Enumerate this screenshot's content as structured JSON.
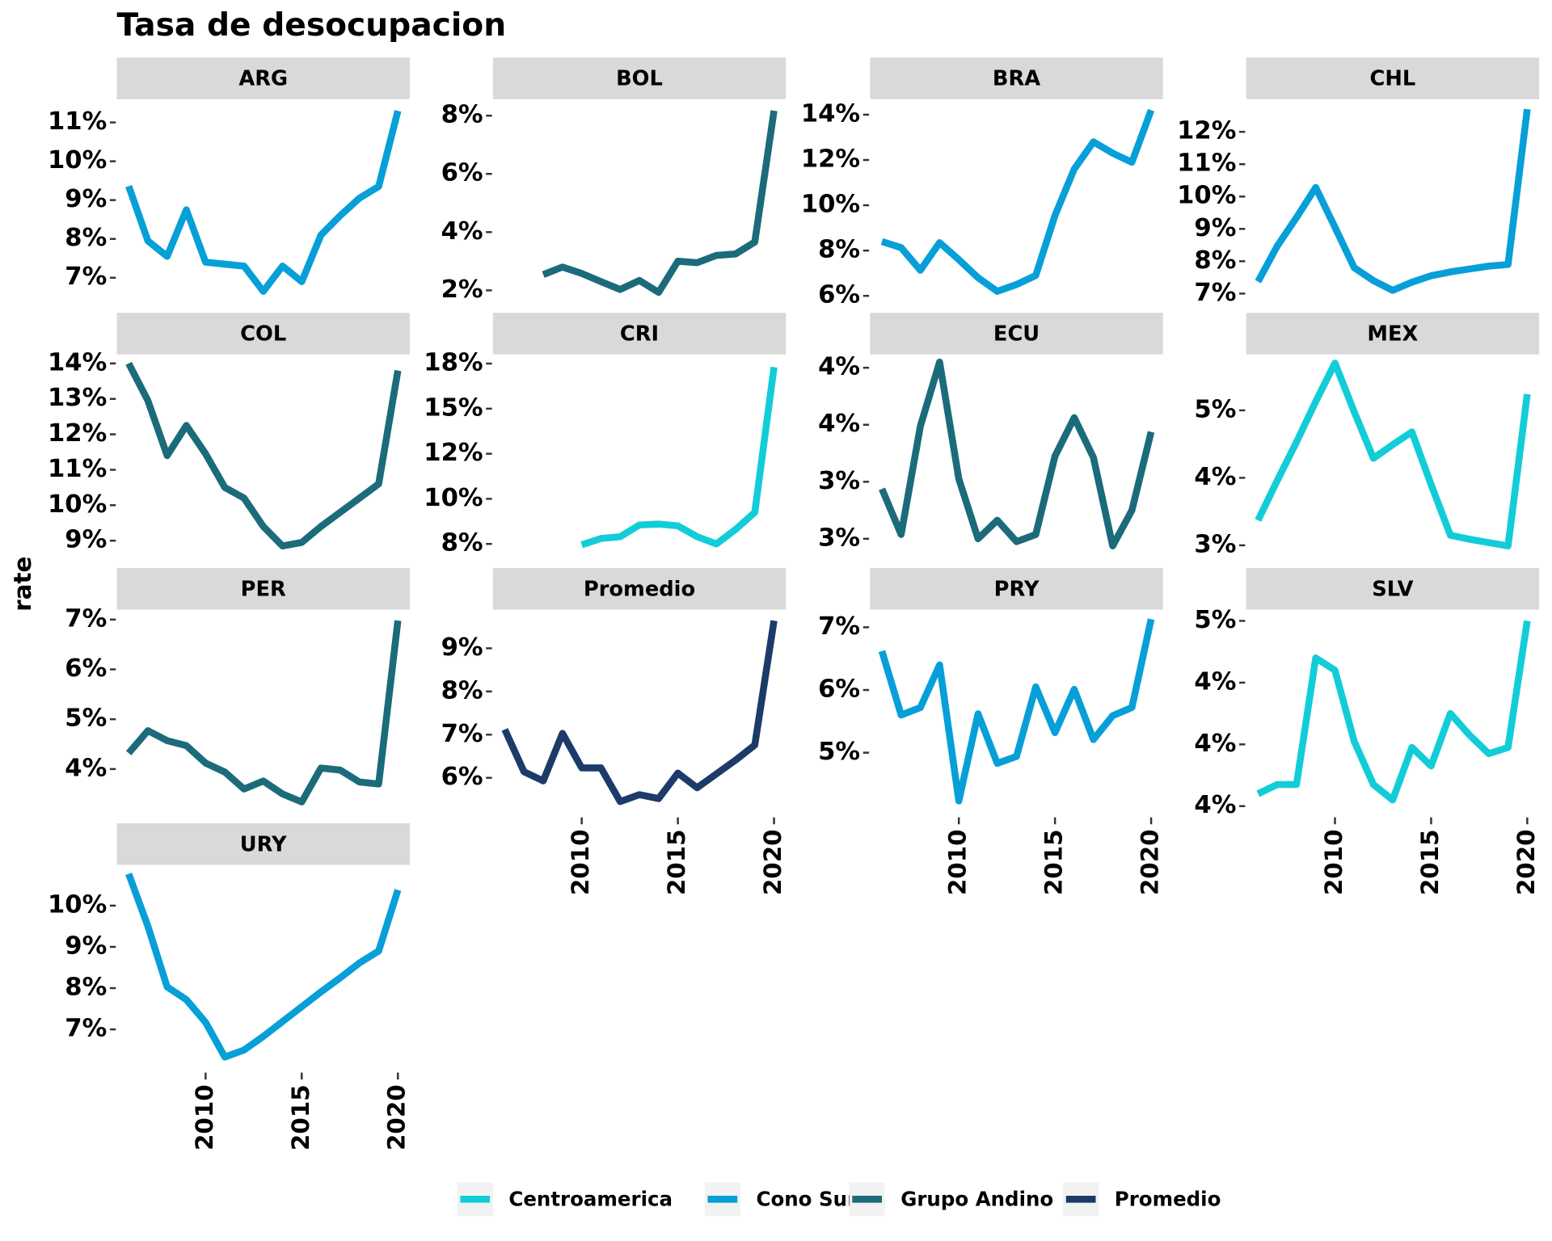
{
  "title": "Tasa de desocupacion",
  "y_label": "rate",
  "x": [
    2006,
    2007,
    2008,
    2009,
    2010,
    2011,
    2012,
    2013,
    2014,
    2015,
    2016,
    2017,
    2018,
    2019,
    2020
  ],
  "xlim": [
    2006,
    2020
  ],
  "xticks": [
    2010,
    2015,
    2020
  ],
  "legend": [
    {
      "name": "Centroamerica",
      "color": "#12cdd8"
    },
    {
      "name": "Cono Sur",
      "color": "#079fd8"
    },
    {
      "name": "Grupo Andino",
      "color": "#1b6b7b"
    },
    {
      "name": "Promedio",
      "color": "#1c3b69"
    }
  ],
  "chart_data": [
    {
      "type": "line",
      "title": "ARG",
      "series": [
        {
          "name": "Cono Sur",
          "color": "#079fd8",
          "values": [
            9.36,
            7.95,
            7.55,
            8.75,
            7.4,
            7.35,
            7.3,
            6.65,
            7.3,
            6.9,
            8.1,
            8.6,
            9.05,
            9.35,
            11.3
          ]
        }
      ],
      "ylim": [
        6.3,
        11.55
      ],
      "yticks": [
        {
          "value": 7,
          "label": "7%"
        },
        {
          "value": 8,
          "label": "8%"
        },
        {
          "value": 9,
          "label": "9%"
        },
        {
          "value": 10,
          "label": "10%"
        },
        {
          "value": 11,
          "label": "11%"
        }
      ]
    },
    {
      "type": "line",
      "title": "BOL",
      "series": [
        {
          "name": "Grupo Andino",
          "color": "#1b6b7b",
          "values": [
            null,
            null,
            2.54,
            2.8,
            2.58,
            2.3,
            2.03,
            2.34,
            1.93,
            3.0,
            2.95,
            3.2,
            3.25,
            3.66,
            8.17
          ]
        }
      ],
      "ylim": [
        1.5,
        8.5
      ],
      "yticks": [
        {
          "value": 2,
          "label": "2%"
        },
        {
          "value": 4,
          "label": "4%"
        },
        {
          "value": 6,
          "label": "6%"
        },
        {
          "value": 8,
          "label": "8%"
        }
      ]
    },
    {
      "type": "line",
      "title": "BRA",
      "series": [
        {
          "name": "Cono Sur",
          "color": "#079fd8",
          "values": [
            8.4,
            8.13,
            7.13,
            8.35,
            7.6,
            6.8,
            6.2,
            6.5,
            6.9,
            9.55,
            11.6,
            12.8,
            12.3,
            11.9,
            14.2
          ]
        }
      ],
      "ylim": [
        5.6,
        14.6
      ],
      "yticks": [
        {
          "value": 6,
          "label": "6%"
        },
        {
          "value": 8,
          "label": "8%"
        },
        {
          "value": 10,
          "label": "10%"
        },
        {
          "value": 12,
          "label": "12%"
        },
        {
          "value": 14,
          "label": "14%"
        }
      ]
    },
    {
      "type": "line",
      "title": "CHL",
      "series": [
        {
          "name": "Cono Sur",
          "color": "#079fd8",
          "values": [
            7.37,
            8.47,
            9.35,
            10.28,
            9.05,
            7.8,
            7.4,
            7.1,
            7.35,
            7.55,
            7.67,
            7.76,
            7.85,
            7.9,
            12.7
          ]
        }
      ],
      "ylim": [
        6.65,
        12.95
      ],
      "yticks": [
        {
          "value": 7,
          "label": "7%"
        },
        {
          "value": 8,
          "label": "8%"
        },
        {
          "value": 9,
          "label": "9%"
        },
        {
          "value": 10,
          "label": "10%"
        },
        {
          "value": 11,
          "label": "11%"
        },
        {
          "value": 12,
          "label": "12%"
        }
      ]
    },
    {
      "type": "line",
      "title": "COL",
      "series": [
        {
          "name": "Grupo Andino",
          "color": "#1b6b7b",
          "values": [
            14.0,
            12.95,
            11.4,
            12.25,
            11.45,
            10.5,
            10.2,
            9.4,
            8.85,
            8.95,
            9.4,
            9.8,
            10.2,
            10.6,
            13.8
          ]
        }
      ],
      "ylim": [
        8.45,
        14.2
      ],
      "yticks": [
        {
          "value": 9,
          "label": "9%"
        },
        {
          "value": 10,
          "label": "10%"
        },
        {
          "value": 11,
          "label": "11%"
        },
        {
          "value": 12,
          "label": "12%"
        },
        {
          "value": 13,
          "label": "13%"
        },
        {
          "value": 14,
          "label": "14%"
        }
      ]
    },
    {
      "type": "line",
      "title": "CRI",
      "series": [
        {
          "name": "Centroamerica",
          "color": "#12cdd8",
          "values": [
            null,
            null,
            null,
            null,
            7.45,
            7.8,
            7.9,
            8.55,
            8.6,
            8.5,
            7.9,
            7.5,
            8.3,
            9.25,
            17.3
          ]
        }
      ],
      "ylim": [
        6.6,
        17.9
      ],
      "yticks": [
        {
          "value": 7.5,
          "label": "8%"
        },
        {
          "value": 10,
          "label": "10%"
        },
        {
          "value": 12.5,
          "label": "12%"
        },
        {
          "value": 15,
          "label": "15%"
        },
        {
          "value": 17.5,
          "label": "18%"
        }
      ]
    },
    {
      "type": "line",
      "title": "ECU",
      "series": [
        {
          "name": "Grupo Andino",
          "color": "#1b6b7b",
          "values": [
            3.35,
            3.03,
            3.79,
            4.24,
            3.42,
            3.0,
            3.13,
            2.98,
            3.03,
            3.58,
            3.85,
            3.57,
            2.95,
            3.2,
            3.75
          ]
        }
      ],
      "ylim": [
        2.85,
        4.28
      ],
      "yticks": [
        {
          "value": 3.0,
          "label": "3%"
        },
        {
          "value": 3.4,
          "label": "3%"
        },
        {
          "value": 3.8,
          "label": "4%"
        },
        {
          "value": 4.2,
          "label": "4%"
        }
      ]
    },
    {
      "type": "line",
      "title": "MEX",
      "series": [
        {
          "name": "Centroamerica",
          "color": "#12cdd8",
          "values": [
            3.37,
            3.96,
            4.53,
            5.13,
            5.7,
            4.98,
            4.29,
            4.49,
            4.68,
            3.9,
            3.15,
            3.09,
            3.04,
            2.99,
            5.24
          ]
        }
      ],
      "ylim": [
        2.78,
        5.8
      ],
      "yticks": [
        {
          "value": 3,
          "label": "3%"
        },
        {
          "value": 4,
          "label": "4%"
        },
        {
          "value": 5,
          "label": "5%"
        }
      ]
    },
    {
      "type": "line",
      "title": "PER",
      "series": [
        {
          "name": "Grupo Andino",
          "color": "#1b6b7b",
          "values": [
            4.32,
            4.77,
            4.57,
            4.47,
            4.12,
            3.94,
            3.6,
            3.76,
            3.5,
            3.34,
            4.02,
            3.98,
            3.74,
            3.7,
            6.98
          ]
        }
      ],
      "ylim": [
        3.07,
        7.16
      ],
      "yticks": [
        {
          "value": 4,
          "label": "4%"
        },
        {
          "value": 5,
          "label": "5%"
        },
        {
          "value": 6,
          "label": "6%"
        },
        {
          "value": 7,
          "label": "7%"
        }
      ]
    },
    {
      "type": "line",
      "title": "Promedio",
      "series": [
        {
          "name": "Promedio",
          "color": "#1c3b69",
          "values": [
            7.12,
            6.14,
            5.93,
            7.03,
            6.23,
            6.23,
            5.45,
            5.61,
            5.52,
            6.11,
            5.77,
            6.09,
            6.41,
            6.76,
            9.64
          ]
        }
      ],
      "ylim": [
        5.13,
        9.85
      ],
      "yticks": [
        {
          "value": 6,
          "label": "6%"
        },
        {
          "value": 7,
          "label": "7%"
        },
        {
          "value": 8,
          "label": "8%"
        },
        {
          "value": 9,
          "label": "9%"
        }
      ]
    },
    {
      "type": "line",
      "title": "PRY",
      "series": [
        {
          "name": "Cono Sur",
          "color": "#079fd8",
          "values": [
            6.62,
            5.6,
            5.72,
            6.4,
            4.23,
            5.62,
            4.83,
            4.94,
            6.05,
            5.32,
            6.01,
            5.21,
            5.59,
            5.72,
            7.13
          ]
        }
      ],
      "ylim": [
        4.0,
        7.25
      ],
      "yticks": [
        {
          "value": 5,
          "label": "5%"
        },
        {
          "value": 6,
          "label": "6%"
        },
        {
          "value": 7,
          "label": "7%"
        }
      ]
    },
    {
      "type": "line",
      "title": "SLV",
      "series": [
        {
          "name": "Centroamerica",
          "color": "#12cdd8",
          "values": [
            4.04,
            4.07,
            4.07,
            4.48,
            4.44,
            4.21,
            4.07,
            4.02,
            4.19,
            4.13,
            4.3,
            4.23,
            4.17,
            4.19,
            4.6
          ]
        }
      ],
      "ylim": [
        3.97,
        4.63
      ],
      "yticks": [
        {
          "value": 4.0,
          "label": "4%"
        },
        {
          "value": 4.2,
          "label": "4%"
        },
        {
          "value": 4.4,
          "label": "4%"
        },
        {
          "value": 4.6,
          "label": "5%"
        }
      ]
    },
    {
      "type": "line",
      "title": "URY",
      "series": [
        {
          "name": "Cono Sur",
          "color": "#079fd8",
          "values": [
            10.77,
            9.5,
            8.03,
            7.72,
            7.17,
            6.33,
            6.5,
            6.83,
            7.19,
            7.55,
            7.91,
            8.25,
            8.61,
            8.9,
            10.38
          ]
        }
      ],
      "ylim": [
        6.0,
        10.94
      ],
      "yticks": [
        {
          "value": 7,
          "label": "7%"
        },
        {
          "value": 8,
          "label": "8%"
        },
        {
          "value": 9,
          "label": "9%"
        },
        {
          "value": 10,
          "label": "10%"
        }
      ]
    }
  ]
}
